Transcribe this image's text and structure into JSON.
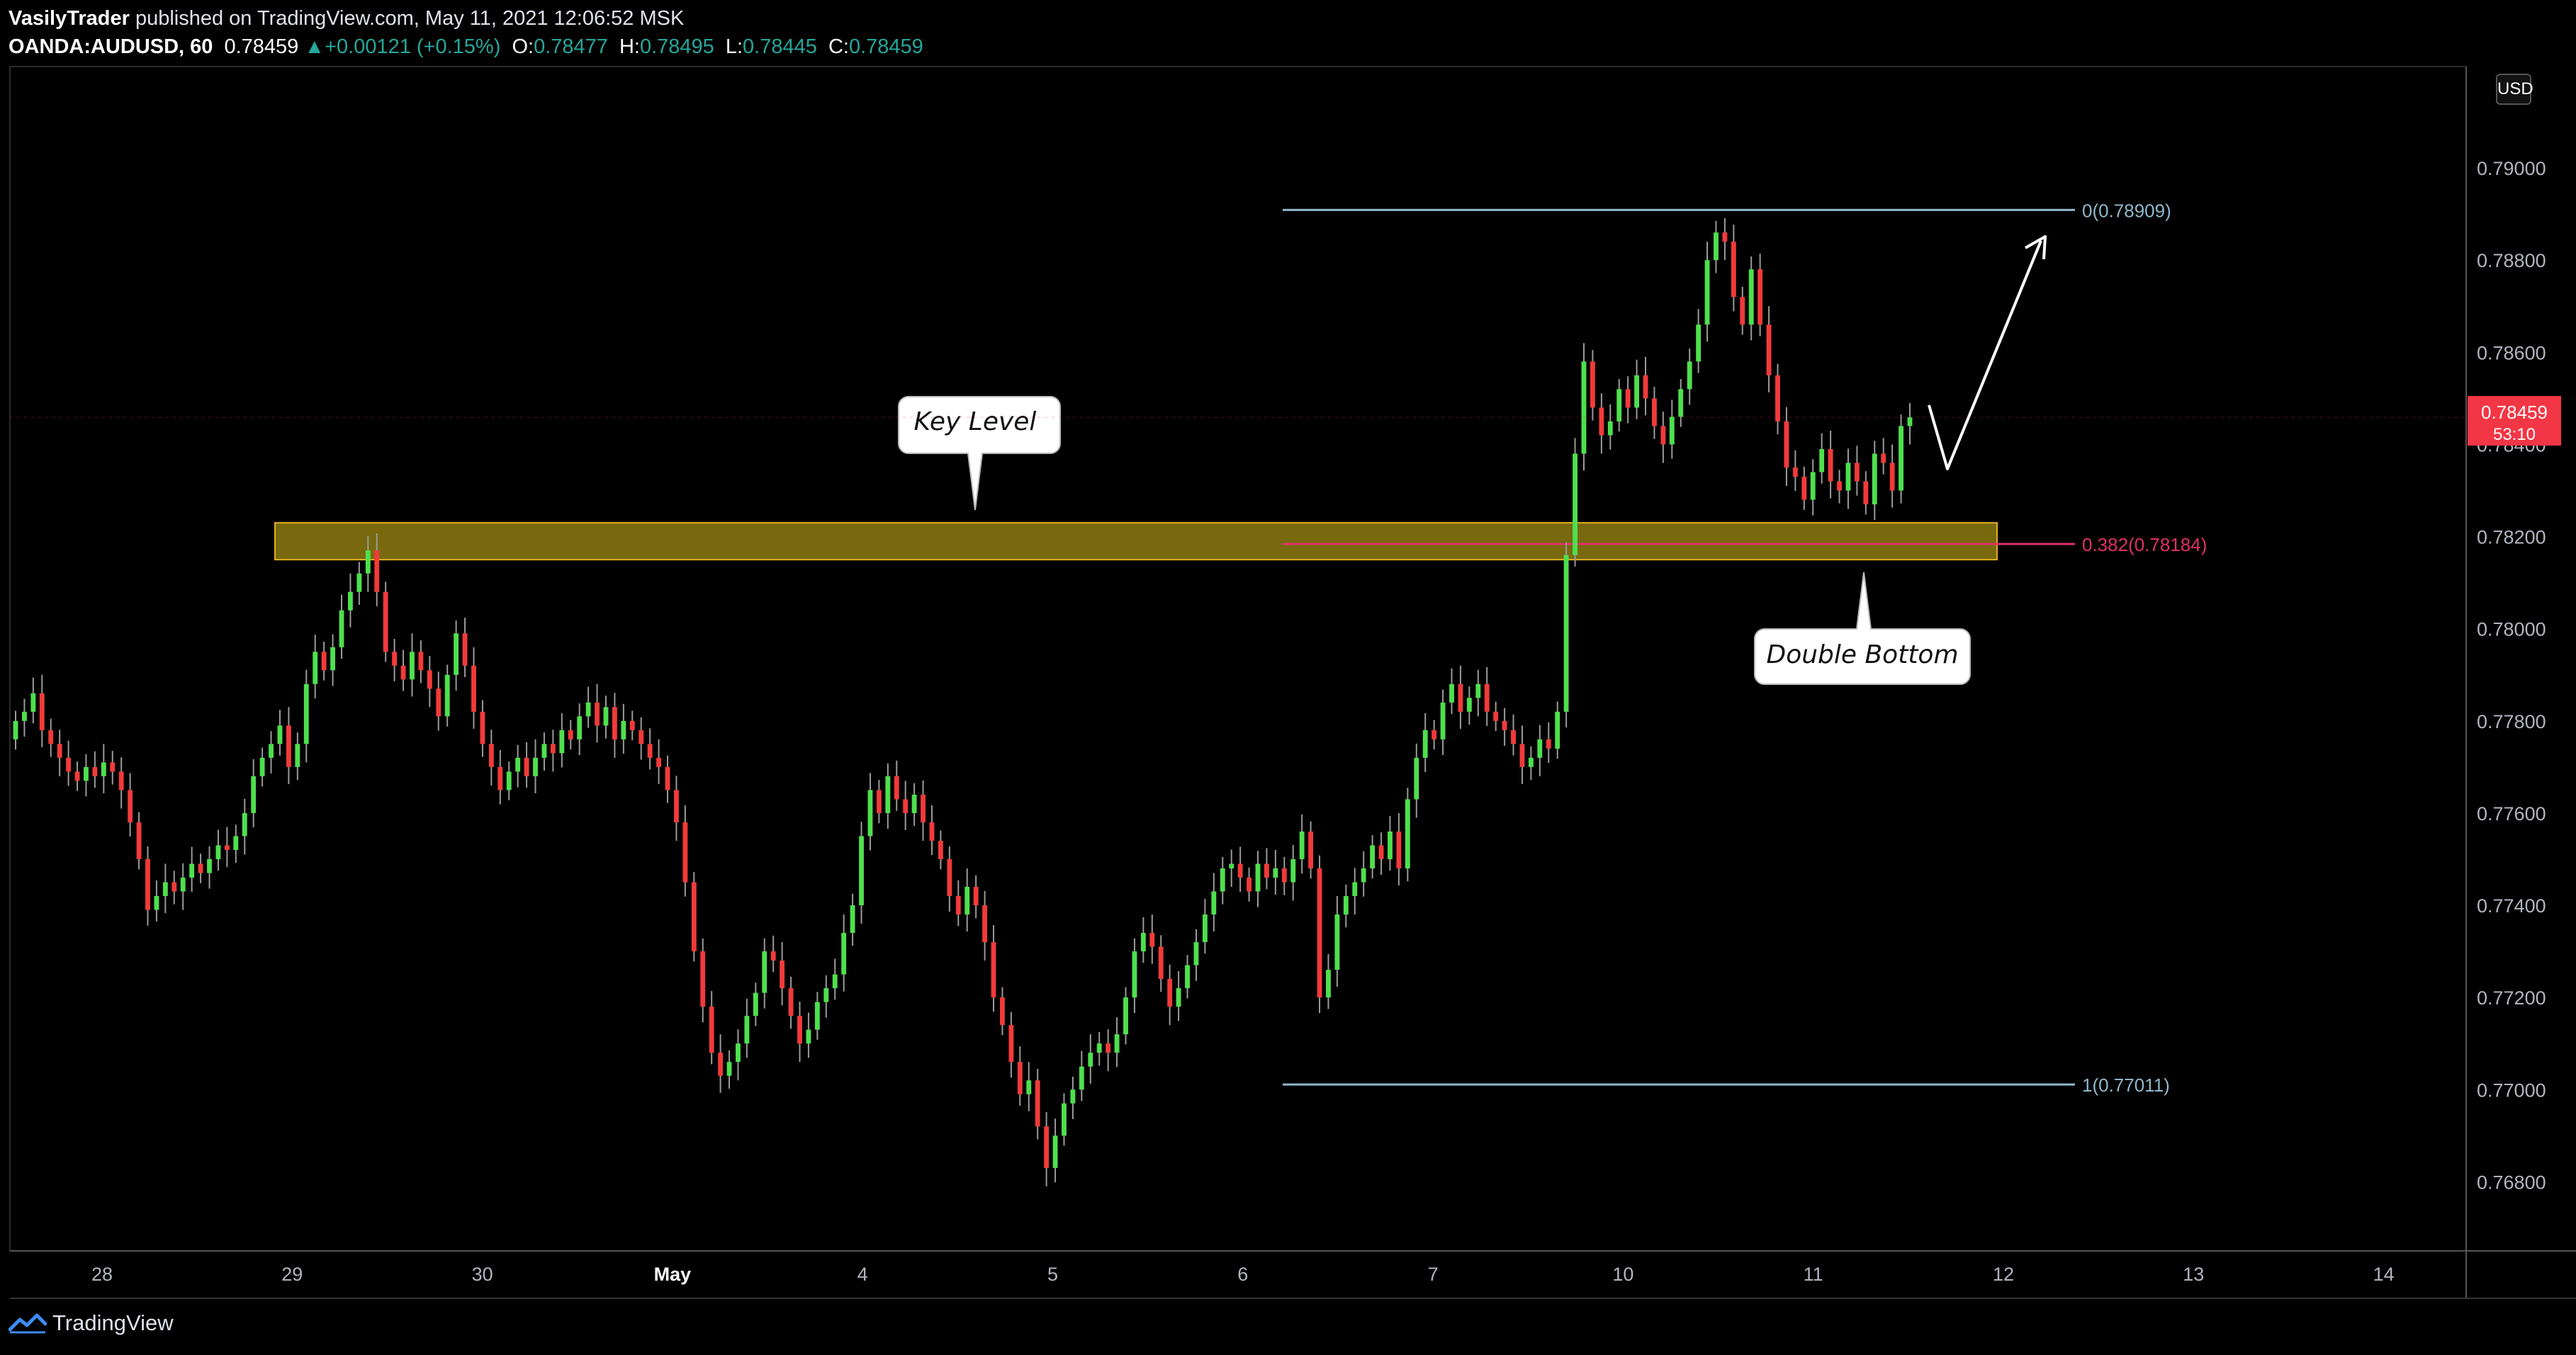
{
  "header": {
    "publisher": "VasilyTrader",
    "published_text": "published on TradingView.com, May 11, 2021 12:06:52 MSK",
    "symbol": "OANDA:AUDUSD, 60",
    "last": "0.78459",
    "change": "+0.00121 (+0.15%)",
    "open_label": "O:",
    "open": "0.78477",
    "high_label": "H:",
    "high": "0.78495",
    "low_label": "L:",
    "low": "0.78445",
    "close_label": "C:",
    "close": "0.78459"
  },
  "currency_badge": "USD",
  "footer": {
    "brand": "TradingView"
  },
  "colors": {
    "background": "#000000",
    "bull": "#4ee04e",
    "bear": "#f23a3a",
    "key_zone": "#8d7b12",
    "fib_line": "#8fb8cc",
    "fib_382": "#e0306a",
    "price_badge": "#f23645"
  },
  "chart_data": {
    "type": "candlestick",
    "ylim": [
      0.7665,
      0.7922
    ],
    "y_ticks": [
      "0.79000",
      "0.78800",
      "0.78600",
      "0.78400",
      "0.78200",
      "0.78000",
      "0.77800",
      "0.77600",
      "0.77400",
      "0.77200",
      "0.77000",
      "0.76800"
    ],
    "x_ticks": [
      "28",
      "29",
      "30",
      "May",
      "4",
      "5",
      "6",
      "7",
      "10",
      "11",
      "12",
      "13",
      "14"
    ],
    "current_price": {
      "value": "0.78459",
      "countdown": "53:10"
    },
    "key_zone": {
      "low": 0.7815,
      "high": 0.7823
    },
    "fib_levels": [
      {
        "label": "0(0.78909)",
        "value": 0.78909
      },
      {
        "label": "0.382(0.78184)",
        "value": 0.78184
      },
      {
        "label": "1(0.77011)",
        "value": 0.77011
      }
    ],
    "annotations": [
      {
        "text": "Key Level"
      },
      {
        "text": "Double Bottom"
      }
    ],
    "close_series": [
      0.778,
      0.7782,
      0.7786,
      0.7778,
      0.7775,
      0.7772,
      0.7769,
      0.7767,
      0.777,
      0.7768,
      0.7771,
      0.7769,
      0.7765,
      0.7758,
      0.775,
      0.7739,
      0.7742,
      0.7745,
      0.7743,
      0.7746,
      0.7749,
      0.7747,
      0.775,
      0.7753,
      0.7752,
      0.7755,
      0.776,
      0.7768,
      0.7772,
      0.7775,
      0.7779,
      0.777,
      0.7775,
      0.7788,
      0.7795,
      0.7791,
      0.7796,
      0.7804,
      0.7808,
      0.7812,
      0.7817,
      0.7808,
      0.7795,
      0.7792,
      0.7789,
      0.7795,
      0.7791,
      0.7787,
      0.7781,
      0.779,
      0.7799,
      0.7792,
      0.7782,
      0.7775,
      0.777,
      0.7765,
      0.7769,
      0.7772,
      0.7768,
      0.7772,
      0.7775,
      0.7773,
      0.7778,
      0.7776,
      0.7781,
      0.7784,
      0.7779,
      0.7783,
      0.7776,
      0.778,
      0.7778,
      0.7775,
      0.7772,
      0.777,
      0.7765,
      0.7758,
      0.7745,
      0.773,
      0.7718,
      0.7708,
      0.7703,
      0.7706,
      0.771,
      0.7716,
      0.7721,
      0.773,
      0.7728,
      0.7722,
      0.7716,
      0.771,
      0.7713,
      0.7719,
      0.7722,
      0.7725,
      0.7734,
      0.774,
      0.7755,
      0.7765,
      0.776,
      0.7768,
      0.7763,
      0.776,
      0.7764,
      0.7758,
      0.7754,
      0.775,
      0.7742,
      0.7738,
      0.7744,
      0.774,
      0.7732,
      0.772,
      0.7714,
      0.7706,
      0.7699,
      0.7702,
      0.7692,
      0.7683,
      0.769,
      0.7697,
      0.77,
      0.7705,
      0.7708,
      0.771,
      0.7708,
      0.7712,
      0.772,
      0.773,
      0.7734,
      0.7731,
      0.7724,
      0.7718,
      0.7722,
      0.7727,
      0.7732,
      0.7738,
      0.7743,
      0.7748,
      0.7749,
      0.7746,
      0.7743,
      0.7749,
      0.7746,
      0.7748,
      0.7745,
      0.775,
      0.7756,
      0.7748,
      0.772,
      0.7726,
      0.7738,
      0.7742,
      0.7745,
      0.7748,
      0.7753,
      0.775,
      0.7756,
      0.7748,
      0.7763,
      0.7772,
      0.7778,
      0.7776,
      0.7784,
      0.7788,
      0.7782,
      0.7785,
      0.7788,
      0.7782,
      0.778,
      0.7778,
      0.7775,
      0.777,
      0.7772,
      0.7776,
      0.7774,
      0.7782,
      0.7816,
      0.7838,
      0.7858,
      0.7848,
      0.7842,
      0.7845,
      0.7852,
      0.7848,
      0.7855,
      0.785,
      0.7844,
      0.784,
      0.7846,
      0.7852,
      0.7858,
      0.7866,
      0.788,
      0.7886,
      0.7884,
      0.7872,
      0.7866,
      0.7878,
      0.7866,
      0.7855,
      0.7845,
      0.7835,
      0.7833,
      0.7828,
      0.7834,
      0.7839,
      0.7832,
      0.783,
      0.7836,
      0.7832,
      0.7827,
      0.7838,
      0.7836,
      0.783,
      0.7844,
      0.78459
    ]
  }
}
